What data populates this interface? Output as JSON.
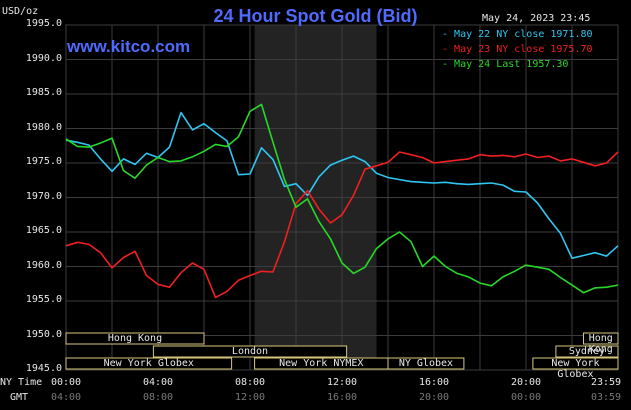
{
  "chart_data": {
    "type": "line",
    "title": "24 Hour Spot Gold (Bid)",
    "brand": "www.kitco.com",
    "unit": "USD/oz",
    "timestamp": "May 24, 2023 23:45",
    "ylim": [
      1945,
      1995
    ],
    "yticks": [
      "1995.0",
      "1990.0",
      "1985.0",
      "1980.0",
      "1975.0",
      "1970.0",
      "1965.0",
      "1960.0",
      "1955.0",
      "1950.0",
      "1945.0"
    ],
    "ny_time_label": "NY Time",
    "gmt_label": "GMT",
    "ny_ticks": [
      "00:00",
      "04:00",
      "08:00",
      "12:00",
      "16:00",
      "20:00",
      "23:59"
    ],
    "gmt_ticks": [
      "04:00",
      "08:00",
      "12:00",
      "16:00",
      "20:00",
      "00:00",
      "03:59"
    ],
    "x_hours": [
      0,
      0.5,
      1,
      1.5,
      2,
      2.5,
      3,
      3.5,
      4,
      4.5,
      5,
      5.5,
      6,
      6.5,
      7,
      7.5,
      8,
      8.5,
      9,
      9.5,
      10,
      10.5,
      11,
      11.5,
      12,
      12.5,
      13,
      13.5,
      14,
      14.5,
      15,
      15.5,
      16,
      16.5,
      17,
      17.5,
      18,
      18.5,
      19,
      19.5,
      20,
      20.5,
      21,
      21.5,
      22,
      22.5,
      23,
      23.5,
      24
    ],
    "series": [
      {
        "name": "May 22 NY close 1971.80",
        "color": "#2fc6f2",
        "values": [
          1978.3,
          1978.0,
          1977.6,
          1975.6,
          1973.8,
          1975.6,
          1974.8,
          1976.4,
          1975.8,
          1977.3,
          1982.3,
          1979.8,
          1980.7,
          1979.4,
          1978.2,
          1973.3,
          1973.4,
          1977.2,
          1975.5,
          1971.6,
          1972.0,
          1970.3,
          1973.0,
          1974.7,
          1975.4,
          1976.0,
          1975.2,
          1973.5,
          1972.9,
          1972.6,
          1972.3,
          1972.2,
          1972.1,
          1972.2,
          1972.0,
          1971.9,
          1972.0,
          1972.1,
          1971.8,
          1970.9,
          1970.8,
          1969.2,
          1966.9,
          1964.8,
          1961.2,
          1961.6,
          1962.0,
          1961.5,
          1963.0
        ]
      },
      {
        "name": "May 23 NY close 1975.70",
        "color": "#f02020",
        "values": [
          1963.0,
          1963.5,
          1963.2,
          1962.0,
          1959.8,
          1961.3,
          1962.2,
          1958.7,
          1957.4,
          1957.0,
          1959.1,
          1960.5,
          1959.6,
          1955.5,
          1956.4,
          1958.0,
          1958.7,
          1959.3,
          1959.2,
          1963.6,
          1969.1,
          1971.0,
          1968.3,
          1966.3,
          1967.5,
          1970.3,
          1974.1,
          1974.6,
          1975.1,
          1976.6,
          1976.2,
          1975.8,
          1975.0,
          1975.2,
          1975.4,
          1975.6,
          1976.2,
          1976.0,
          1976.1,
          1975.9,
          1976.3,
          1975.8,
          1976.0,
          1975.3,
          1975.6,
          1975.1,
          1974.6,
          1975.0,
          1976.6
        ]
      },
      {
        "name": "May 24 Last 1957.30",
        "color": "#28d828",
        "values": [
          1978.5,
          1977.4,
          1977.3,
          1977.9,
          1978.6,
          1973.9,
          1972.8,
          1974.7,
          1975.8,
          1975.2,
          1975.3,
          1975.9,
          1976.7,
          1977.7,
          1977.4,
          1978.8,
          1982.5,
          1983.5,
          1978.0,
          1972.6,
          1968.6,
          1969.8,
          1966.5,
          1964.0,
          1960.5,
          1959.0,
          1959.9,
          1962.6,
          1964.0,
          1965.0,
          1963.6,
          1960.0,
          1961.5,
          1960.0,
          1959.0,
          1958.5,
          1957.6,
          1957.2,
          1958.5,
          1959.3,
          1960.2,
          1959.9,
          1959.6,
          1958.4,
          1957.3,
          1956.2,
          1956.9,
          1957.0,
          1957.3
        ]
      }
    ],
    "sessions": [
      {
        "label": "Hong Kong",
        "row": 0,
        "start": 0,
        "end": 6
      },
      {
        "label": "Hong Kong",
        "row": 0,
        "start": 22.5,
        "end": 24
      },
      {
        "label": "London",
        "row": 1,
        "start": 3.8,
        "end": 12.2
      },
      {
        "label": "Sydney",
        "row": 1,
        "start": 21.3,
        "end": 24
      },
      {
        "label": "New York Globex",
        "row": 2,
        "start": 0,
        "end": 7.2
      },
      {
        "label": "New York NYMEX",
        "row": 2,
        "start": 8.2,
        "end": 14
      },
      {
        "label": "NY Globex",
        "row": 2,
        "start": 14,
        "end": 17.3
      },
      {
        "label": "New York Globex",
        "row": 2,
        "start": 20.3,
        "end": 24
      }
    ]
  }
}
